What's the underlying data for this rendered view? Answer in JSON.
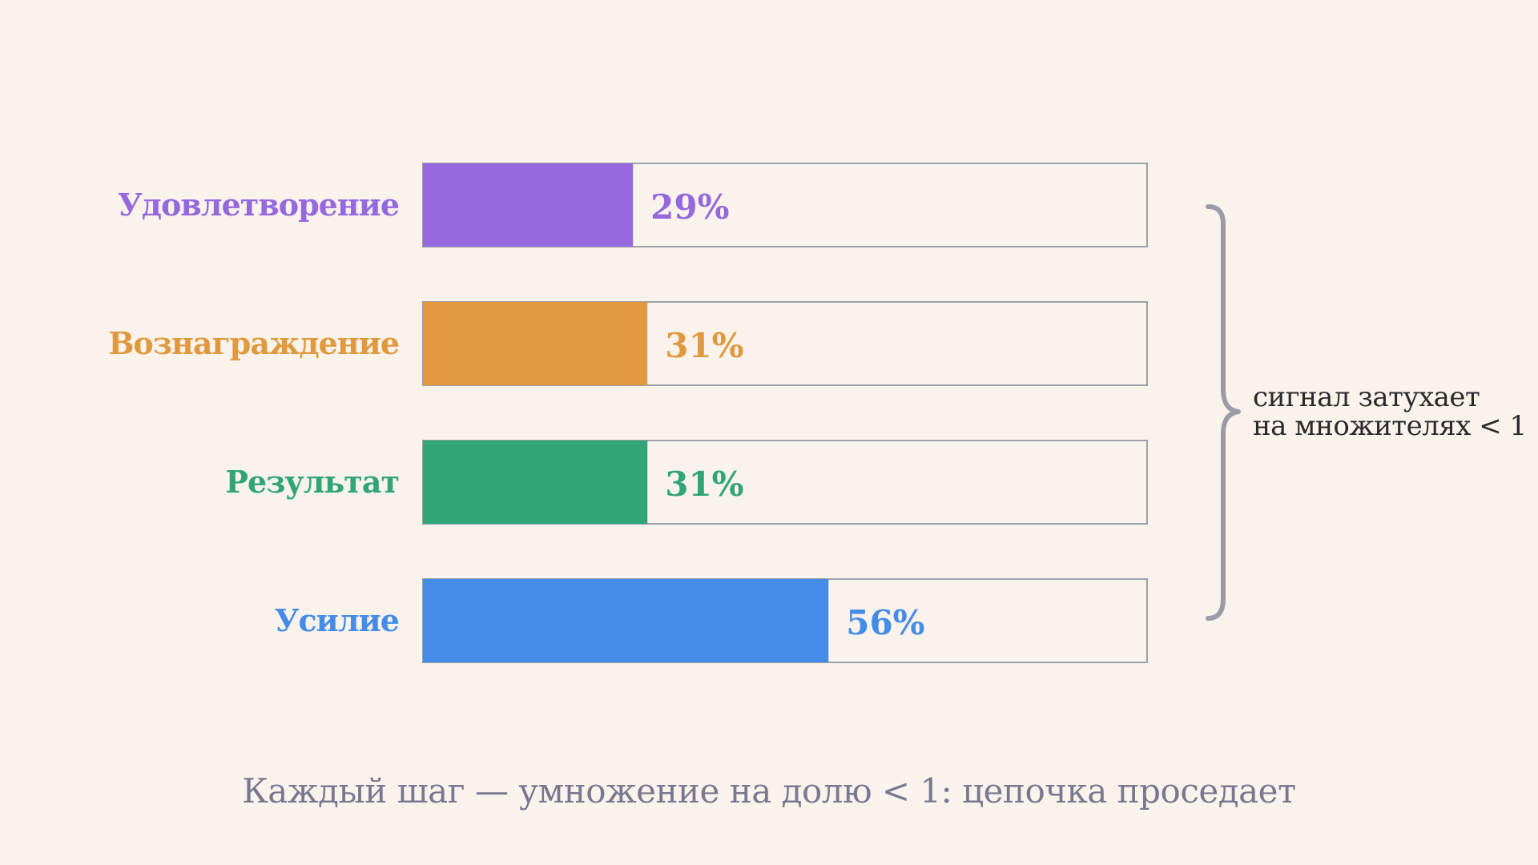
{
  "chart_data": {
    "type": "bar",
    "orientation": "horizontal",
    "categories": [
      "Удовлетворение",
      "Вознаграждение",
      "Результат",
      "Усилие"
    ],
    "values": [
      29,
      31,
      31,
      56
    ],
    "value_labels": [
      "29%",
      "31%",
      "31%",
      "56%"
    ],
    "xlim": [
      0,
      100
    ],
    "colors": [
      "#9569DD",
      "#E0993E",
      "#30A577",
      "#458BE8"
    ],
    "annotation": {
      "lines": [
        "сигнал затухает",
        "на множителях < 1"
      ]
    },
    "caption": "Каждый шаг — умножение на долю < 1: цепочка проседает",
    "grid": false,
    "legend": "none"
  },
  "theme": {
    "background": "#FAF3EC",
    "track_fill": "#FAF3EC",
    "track_stroke": "#9FA0A8",
    "brace_color": "#9A9BA7",
    "caption_color": "#7A7891",
    "note_color": "#2a2a2a"
  }
}
